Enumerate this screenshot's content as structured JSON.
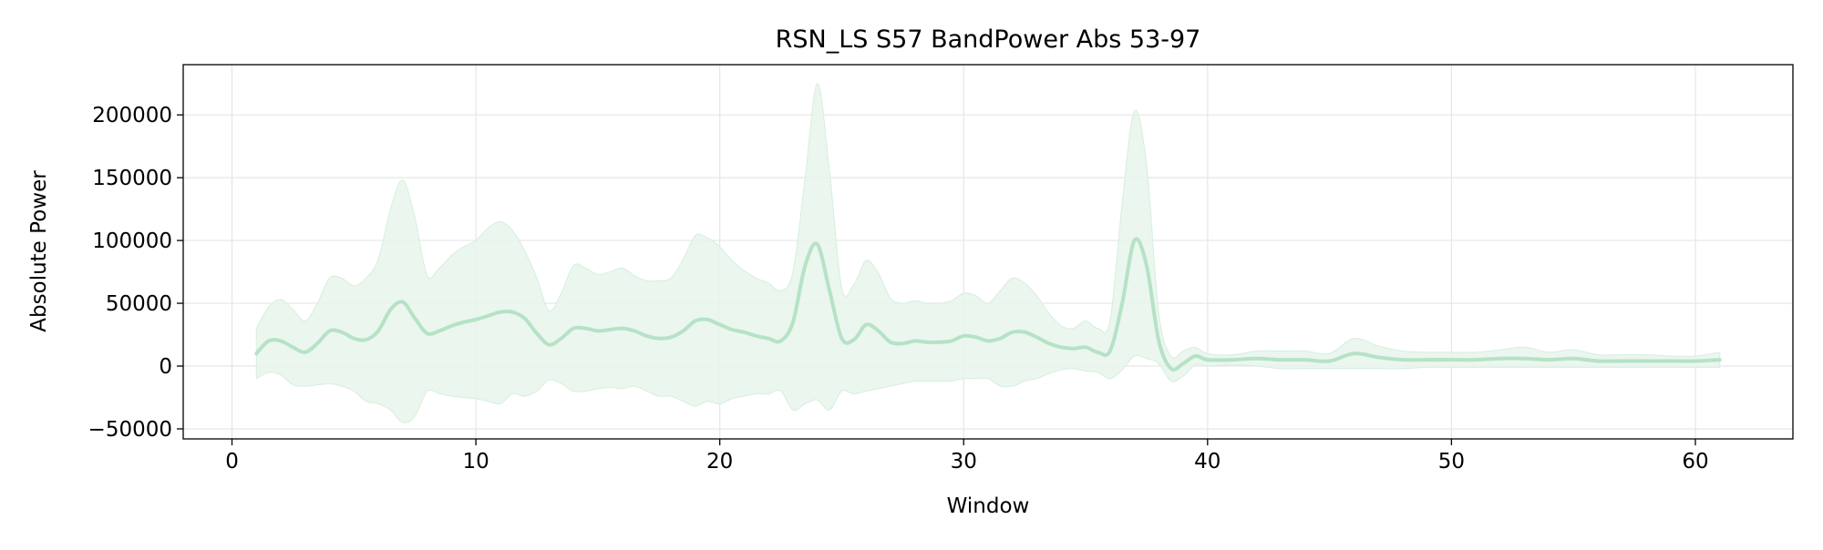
{
  "chart_data": {
    "type": "line",
    "title": "RSN_LS S57 BandPower Abs 53-97",
    "xlabel": "Window",
    "ylabel": "Absolute Power",
    "xlim": [
      -2,
      64
    ],
    "ylim": [
      -58000,
      240000
    ],
    "x_ticks": [
      0,
      10,
      20,
      30,
      40,
      50,
      60
    ],
    "x_tick_labels": [
      "0",
      "10",
      "20",
      "30",
      "40",
      "50",
      "60"
    ],
    "y_ticks": [
      -50000,
      0,
      50000,
      100000,
      150000,
      200000
    ],
    "y_tick_labels": [
      "−50000",
      "0",
      "50000",
      "100000",
      "150000",
      "200000"
    ],
    "grid": true,
    "legend": "none",
    "colors": {
      "line": "#b6e2c5",
      "band": "#e8f5ec",
      "grid": "#e6e6e6"
    },
    "series": [
      {
        "x": [
          1,
          1.5,
          2,
          2.5,
          3,
          3.5,
          4,
          4.5,
          5,
          5.5,
          6,
          6.5,
          7,
          7.5,
          8,
          8.5,
          9,
          9.5,
          10,
          10.5,
          11,
          11.5,
          12,
          12.5,
          13,
          13.5,
          14,
          14.5,
          15,
          15.5,
          16,
          16.5,
          17,
          17.5,
          18,
          18.5,
          19,
          19.5,
          20,
          20.5,
          21,
          21.5,
          22,
          22.5,
          23,
          23.5,
          24,
          24.5,
          25,
          25.5,
          26,
          26.5,
          27,
          27.5,
          28,
          28.5,
          29,
          29.5,
          30,
          30.5,
          31,
          31.5,
          32,
          32.5,
          33,
          33.5,
          34,
          34.5,
          35,
          35.5,
          36,
          36.5,
          37,
          37.5,
          38,
          38.5,
          39,
          39.5,
          40,
          41,
          42,
          43,
          44,
          45,
          46,
          47,
          48,
          49,
          50,
          51,
          52,
          53,
          54,
          55,
          56,
          57,
          58,
          59,
          60,
          61
        ],
        "mean": [
          10000,
          20000,
          20000,
          15000,
          11000,
          18000,
          28000,
          27000,
          22000,
          21000,
          28000,
          45000,
          51000,
          38000,
          26000,
          28000,
          32000,
          35000,
          37000,
          40000,
          43000,
          43000,
          38000,
          26000,
          17000,
          22000,
          30000,
          30000,
          28000,
          29000,
          30000,
          28000,
          24000,
          22000,
          23000,
          28000,
          36000,
          37000,
          33000,
          29000,
          27000,
          24000,
          22000,
          20000,
          35000,
          80000,
          97000,
          60000,
          22000,
          21000,
          33000,
          28000,
          19000,
          18000,
          20000,
          19000,
          19000,
          20000,
          24000,
          23000,
          20000,
          22000,
          27000,
          27000,
          23000,
          18000,
          15000,
          14000,
          15000,
          11000,
          12000,
          50000,
          100000,
          80000,
          20000,
          -2000,
          2000,
          8000,
          5000,
          5000,
          6000,
          5000,
          5000,
          4000,
          10000,
          7000,
          5000,
          5000,
          5000,
          5000,
          6000,
          6000,
          5000,
          6000,
          4000,
          4000,
          4000,
          4000,
          4000,
          5000
        ],
        "upper": [
          30000,
          47000,
          53000,
          45000,
          36000,
          50000,
          70000,
          70000,
          64000,
          70000,
          85000,
          125000,
          148000,
          118000,
          72000,
          78000,
          88000,
          95000,
          100000,
          110000,
          115000,
          108000,
          92000,
          70000,
          44000,
          58000,
          80000,
          78000,
          73000,
          75000,
          78000,
          72000,
          68000,
          68000,
          70000,
          85000,
          104000,
          102000,
          95000,
          84000,
          76000,
          70000,
          66000,
          60000,
          75000,
          150000,
          225000,
          155000,
          62000,
          65000,
          84000,
          74000,
          54000,
          50000,
          52000,
          50000,
          50000,
          52000,
          58000,
          56000,
          50000,
          60000,
          70000,
          66000,
          56000,
          42000,
          32000,
          30000,
          36000,
          30000,
          36000,
          130000,
          203000,
          160000,
          42000,
          8000,
          12000,
          15000,
          10000,
          9000,
          12000,
          12000,
          12000,
          10000,
          22000,
          16000,
          12000,
          11000,
          11000,
          11000,
          13000,
          15000,
          11000,
          13000,
          9000,
          9000,
          9000,
          8000,
          8000,
          11000
        ],
        "lower": [
          -10000,
          -5000,
          -7000,
          -15000,
          -16000,
          -15000,
          -14000,
          -16000,
          -20000,
          -28000,
          -30000,
          -35000,
          -45000,
          -40000,
          -20000,
          -22000,
          -24000,
          -25000,
          -26000,
          -28000,
          -30000,
          -22000,
          -24000,
          -20000,
          -11000,
          -14000,
          -20000,
          -20000,
          -18000,
          -17000,
          -18000,
          -16000,
          -20000,
          -24000,
          -24000,
          -28000,
          -32000,
          -28000,
          -30000,
          -26000,
          -24000,
          -22000,
          -22000,
          -20000,
          -35000,
          -30000,
          -27000,
          -35000,
          -20000,
          -22000,
          -20000,
          -18000,
          -16000,
          -14000,
          -12000,
          -12000,
          -12000,
          -12000,
          -10000,
          -10000,
          -10000,
          -16000,
          -16000,
          -12000,
          -10000,
          -6000,
          -3000,
          -2000,
          -4000,
          -5000,
          -10000,
          -3000,
          8000,
          6000,
          2000,
          -12000,
          -8000,
          1000,
          0,
          1000,
          0,
          -2000,
          -2000,
          -2000,
          -2000,
          -2000,
          -2000,
          -1000,
          -1000,
          -1000,
          -1000,
          -1000,
          -1000,
          -1000,
          -1000,
          -1000,
          -1000,
          -1000,
          -1000,
          -1000
        ]
      }
    ]
  }
}
